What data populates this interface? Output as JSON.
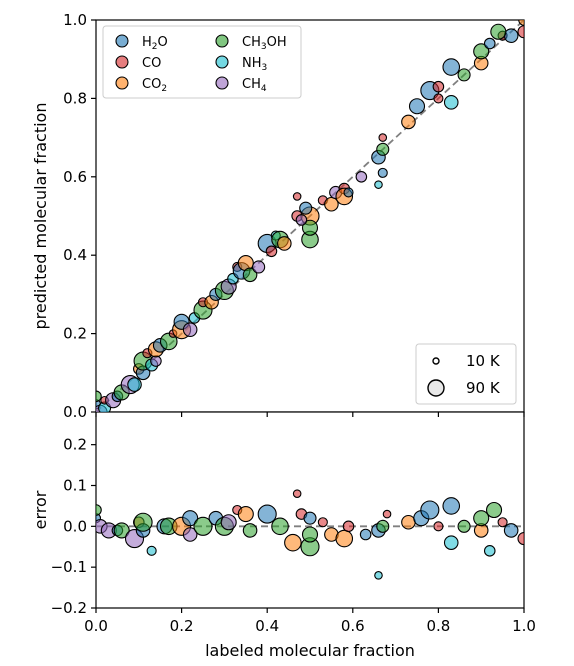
{
  "chart_data": {
    "type": "scatter",
    "x_axis": {
      "label": "labeled molecular fraction",
      "range": [
        0.0,
        1.0
      ],
      "ticks": [
        "0.0",
        "0.2",
        "0.4",
        "0.6",
        "0.8",
        "1.0"
      ]
    },
    "panels": [
      {
        "id": "top",
        "ylabel": "predicted molecular fraction",
        "ylim": [
          0.0,
          1.0
        ],
        "yticks": [
          "0.0",
          "0.2",
          "0.4",
          "0.6",
          "0.8",
          "1.0"
        ],
        "reference_line": {
          "style": "dashed",
          "color": "#808080",
          "from": [
            0,
            0
          ],
          "to": [
            1,
            1
          ]
        }
      },
      {
        "id": "bottom",
        "ylabel": "error",
        "ylim": [
          -0.2,
          0.28
        ],
        "yticks": [
          "−0.2",
          "−0.1",
          "0.0",
          "0.1",
          "0.2"
        ],
        "reference_line": {
          "style": "dashed",
          "color": "#808080",
          "from": [
            0,
            0
          ],
          "to": [
            1,
            0
          ]
        }
      }
    ],
    "legend": {
      "position": "upper-left",
      "series": [
        {
          "name": "H₂O",
          "color": "#1f77b4",
          "base": "H",
          "sub": "2",
          "tail": "O"
        },
        {
          "name": "CO",
          "color": "#d62728",
          "base": "CO",
          "sub": "",
          "tail": ""
        },
        {
          "name": "CO₂",
          "color": "#ff7f0e",
          "base": "CO",
          "sub": "2",
          "tail": ""
        },
        {
          "name": "CH₃OH",
          "color": "#2ca02c",
          "base": "CH",
          "sub": "3",
          "tail": "OH"
        },
        {
          "name": "NH₃",
          "color": "#17becf",
          "base": "NH",
          "sub": "3",
          "tail": ""
        },
        {
          "name": "CH₄",
          "color": "#9467bd",
          "base": "CH",
          "sub": "4",
          "tail": ""
        }
      ]
    },
    "size_legend": {
      "position": "lower-right",
      "entries": [
        {
          "label": "10 K",
          "temperature": 10
        },
        {
          "label": "90 K",
          "temperature": 90
        }
      ]
    },
    "points": [
      {
        "s": "H2O",
        "x": 0.0,
        "y": 0.02,
        "T": 30
      },
      {
        "s": "CH3OH",
        "x": 0.0,
        "y": 0.04,
        "T": 40
      },
      {
        "s": "CH4",
        "x": 0.01,
        "y": 0.0,
        "T": 60
      },
      {
        "s": "NH3",
        "x": 0.02,
        "y": 0.01,
        "T": 50
      },
      {
        "s": "CO",
        "x": 0.02,
        "y": 0.03,
        "T": 20
      },
      {
        "s": "CH4",
        "x": 0.04,
        "y": 0.03,
        "T": 70
      },
      {
        "s": "H2O",
        "x": 0.05,
        "y": 0.04,
        "T": 40
      },
      {
        "s": "CH3OH",
        "x": 0.06,
        "y": 0.05,
        "T": 70
      },
      {
        "s": "CH4",
        "x": 0.08,
        "y": 0.07,
        "T": 90
      },
      {
        "s": "NH3",
        "x": 0.09,
        "y": 0.07,
        "T": 60
      },
      {
        "s": "CO2",
        "x": 0.1,
        "y": 0.11,
        "T": 40
      },
      {
        "s": "H2O",
        "x": 0.11,
        "y": 0.1,
        "T": 60
      },
      {
        "s": "CH3OH",
        "x": 0.11,
        "y": 0.13,
        "T": 90
      },
      {
        "s": "CO",
        "x": 0.12,
        "y": 0.15,
        "T": 30
      },
      {
        "s": "NH3",
        "x": 0.13,
        "y": 0.12,
        "T": 50
      },
      {
        "s": "CH4",
        "x": 0.14,
        "y": 0.13,
        "T": 40
      },
      {
        "s": "CO2",
        "x": 0.14,
        "y": 0.16,
        "T": 70
      },
      {
        "s": "H2O",
        "x": 0.15,
        "y": 0.17,
        "T": 60
      },
      {
        "s": "CH3OH",
        "x": 0.17,
        "y": 0.18,
        "T": 80
      },
      {
        "s": "CO",
        "x": 0.18,
        "y": 0.2,
        "T": 20
      },
      {
        "s": "CO2",
        "x": 0.2,
        "y": 0.21,
        "T": 90
      },
      {
        "s": "H2O",
        "x": 0.2,
        "y": 0.23,
        "T": 70
      },
      {
        "s": "CH4",
        "x": 0.22,
        "y": 0.21,
        "T": 60
      },
      {
        "s": "NH3",
        "x": 0.23,
        "y": 0.24,
        "T": 40
      },
      {
        "s": "CH3OH",
        "x": 0.25,
        "y": 0.26,
        "T": 90
      },
      {
        "s": "CO",
        "x": 0.25,
        "y": 0.28,
        "T": 30
      },
      {
        "s": "CO2",
        "x": 0.27,
        "y": 0.28,
        "T": 60
      },
      {
        "s": "H2O",
        "x": 0.28,
        "y": 0.3,
        "T": 50
      },
      {
        "s": "CH3OH",
        "x": 0.3,
        "y": 0.31,
        "T": 90
      },
      {
        "s": "CH4",
        "x": 0.31,
        "y": 0.32,
        "T": 70
      },
      {
        "s": "NH3",
        "x": 0.32,
        "y": 0.34,
        "T": 40
      },
      {
        "s": "CO",
        "x": 0.33,
        "y": 0.37,
        "T": 30
      },
      {
        "s": "H2O",
        "x": 0.34,
        "y": 0.36,
        "T": 80
      },
      {
        "s": "CO2",
        "x": 0.35,
        "y": 0.38,
        "T": 70
      },
      {
        "s": "CH3OH",
        "x": 0.36,
        "y": 0.35,
        "T": 60
      },
      {
        "s": "CH4",
        "x": 0.38,
        "y": 0.37,
        "T": 50
      },
      {
        "s": "H2O",
        "x": 0.4,
        "y": 0.43,
        "T": 90
      },
      {
        "s": "CO",
        "x": 0.41,
        "y": 0.41,
        "T": 40
      },
      {
        "s": "NH3",
        "x": 0.42,
        "y": 0.45,
        "T": 30
      },
      {
        "s": "CH3OH",
        "x": 0.43,
        "y": 0.44,
        "T": 80
      },
      {
        "s": "CO2",
        "x": 0.44,
        "y": 0.43,
        "T": 60
      },
      {
        "s": "CO",
        "x": 0.47,
        "y": 0.55,
        "T": 20
      },
      {
        "s": "CO",
        "x": 0.47,
        "y": 0.5,
        "T": 40
      },
      {
        "s": "CO2",
        "x": 0.5,
        "y": 0.5,
        "T": 90
      },
      {
        "s": "CH3OH",
        "x": 0.5,
        "y": 0.44,
        "T": 80
      },
      {
        "s": "CH3OH",
        "x": 0.5,
        "y": 0.47,
        "T": 70
      },
      {
        "s": "H2O",
        "x": 0.49,
        "y": 0.52,
        "T": 50
      },
      {
        "s": "CH4",
        "x": 0.48,
        "y": 0.49,
        "T": 40
      },
      {
        "s": "CO",
        "x": 0.53,
        "y": 0.54,
        "T": 30
      },
      {
        "s": "CO2",
        "x": 0.55,
        "y": 0.53,
        "T": 60
      },
      {
        "s": "CH4",
        "x": 0.56,
        "y": 0.56,
        "T": 50
      },
      {
        "s": "CO",
        "x": 0.58,
        "y": 0.57,
        "T": 40
      },
      {
        "s": "CO2",
        "x": 0.58,
        "y": 0.55,
        "T": 80
      },
      {
        "s": "H2O",
        "x": 0.59,
        "y": 0.56,
        "T": 30
      },
      {
        "s": "CH4",
        "x": 0.62,
        "y": 0.6,
        "T": 40
      },
      {
        "s": "H2O",
        "x": 0.66,
        "y": 0.65,
        "T": 60
      },
      {
        "s": "H2O",
        "x": 0.67,
        "y": 0.61,
        "T": 30
      },
      {
        "s": "CO",
        "x": 0.67,
        "y": 0.7,
        "T": 20
      },
      {
        "s": "CH3OH",
        "x": 0.67,
        "y": 0.67,
        "T": 50
      },
      {
        "s": "NH3",
        "x": 0.66,
        "y": 0.58,
        "T": 20
      },
      {
        "s": "CO2",
        "x": 0.73,
        "y": 0.74,
        "T": 60
      },
      {
        "s": "H2O",
        "x": 0.75,
        "y": 0.78,
        "T": 70
      },
      {
        "s": "H2O",
        "x": 0.78,
        "y": 0.82,
        "T": 90
      },
      {
        "s": "CO",
        "x": 0.8,
        "y": 0.8,
        "T": 30
      },
      {
        "s": "NH3",
        "x": 0.83,
        "y": 0.79,
        "T": 60
      },
      {
        "s": "CO",
        "x": 0.8,
        "y": 0.83,
        "T": 40
      },
      {
        "s": "H2O",
        "x": 0.83,
        "y": 0.88,
        "T": 80
      },
      {
        "s": "CH3OH",
        "x": 0.86,
        "y": 0.86,
        "T": 50
      },
      {
        "s": "CO2",
        "x": 0.9,
        "y": 0.89,
        "T": 60
      },
      {
        "s": "CH3OH",
        "x": 0.9,
        "y": 0.92,
        "T": 70
      },
      {
        "s": "H2O",
        "x": 0.92,
        "y": 0.94,
        "T": 40
      },
      {
        "s": "CO",
        "x": 0.95,
        "y": 0.96,
        "T": 30
      },
      {
        "s": "H2O",
        "x": 0.97,
        "y": 0.96,
        "T": 60
      },
      {
        "s": "CO",
        "x": 1.0,
        "y": 0.97,
        "T": 50
      },
      {
        "s": "CO2",
        "x": 1.0,
        "y": 1.0,
        "T": 40
      },
      {
        "s": "CH3OH",
        "x": 0.94,
        "y": 0.97,
        "T": 70
      }
    ],
    "error_points": [
      {
        "s": "H2O",
        "x": 0.0,
        "y": 0.02,
        "T": 30
      },
      {
        "s": "CH3OH",
        "x": 0.0,
        "y": 0.04,
        "T": 40
      },
      {
        "s": "CH4",
        "x": 0.01,
        "y": 0.0,
        "T": 60
      },
      {
        "s": "CH4",
        "x": 0.03,
        "y": -0.01,
        "T": 70
      },
      {
        "s": "H2O",
        "x": 0.05,
        "y": -0.01,
        "T": 40
      },
      {
        "s": "CH3OH",
        "x": 0.06,
        "y": -0.01,
        "T": 70
      },
      {
        "s": "CH4",
        "x": 0.09,
        "y": -0.03,
        "T": 90
      },
      {
        "s": "CO2",
        "x": 0.1,
        "y": 0.01,
        "T": 40
      },
      {
        "s": "H2O",
        "x": 0.11,
        "y": -0.01,
        "T": 60
      },
      {
        "s": "CH3OH",
        "x": 0.11,
        "y": 0.01,
        "T": 90
      },
      {
        "s": "NH3",
        "x": 0.13,
        "y": -0.06,
        "T": 30
      },
      {
        "s": "H2O",
        "x": 0.16,
        "y": 0.0,
        "T": 70
      },
      {
        "s": "CH3OH",
        "x": 0.17,
        "y": 0.0,
        "T": 80
      },
      {
        "s": "CO2",
        "x": 0.2,
        "y": 0.0,
        "T": 90
      },
      {
        "s": "H2O",
        "x": 0.22,
        "y": 0.02,
        "T": 70
      },
      {
        "s": "CH4",
        "x": 0.22,
        "y": -0.02,
        "T": 60
      },
      {
        "s": "CH3OH",
        "x": 0.25,
        "y": 0.0,
        "T": 90
      },
      {
        "s": "H2O",
        "x": 0.28,
        "y": 0.02,
        "T": 60
      },
      {
        "s": "CH3OH",
        "x": 0.3,
        "y": 0.0,
        "T": 90
      },
      {
        "s": "CH4",
        "x": 0.31,
        "y": 0.01,
        "T": 70
      },
      {
        "s": "CO",
        "x": 0.33,
        "y": 0.04,
        "T": 30
      },
      {
        "s": "CO2",
        "x": 0.35,
        "y": 0.03,
        "T": 70
      },
      {
        "s": "CH3OH",
        "x": 0.36,
        "y": -0.01,
        "T": 60
      },
      {
        "s": "H2O",
        "x": 0.4,
        "y": 0.03,
        "T": 90
      },
      {
        "s": "CH3OH",
        "x": 0.43,
        "y": 0.0,
        "T": 80
      },
      {
        "s": "CO",
        "x": 0.47,
        "y": 0.08,
        "T": 20
      },
      {
        "s": "CO",
        "x": 0.48,
        "y": 0.03,
        "T": 40
      },
      {
        "s": "CO2",
        "x": 0.46,
        "y": -0.04,
        "T": 80
      },
      {
        "s": "CH3OH",
        "x": 0.5,
        "y": -0.05,
        "T": 90
      },
      {
        "s": "CH3OH",
        "x": 0.5,
        "y": -0.02,
        "T": 70
      },
      {
        "s": "H2O",
        "x": 0.5,
        "y": 0.02,
        "T": 50
      },
      {
        "s": "CO",
        "x": 0.53,
        "y": 0.01,
        "T": 30
      },
      {
        "s": "CO2",
        "x": 0.55,
        "y": -0.02,
        "T": 60
      },
      {
        "s": "CO2",
        "x": 0.58,
        "y": -0.03,
        "T": 80
      },
      {
        "s": "CO",
        "x": 0.59,
        "y": 0.0,
        "T": 40
      },
      {
        "s": "H2O",
        "x": 0.63,
        "y": -0.02,
        "T": 40
      },
      {
        "s": "H2O",
        "x": 0.66,
        "y": -0.01,
        "T": 60
      },
      {
        "s": "NH3",
        "x": 0.66,
        "y": -0.12,
        "T": 20
      },
      {
        "s": "CO",
        "x": 0.68,
        "y": 0.03,
        "T": 20
      },
      {
        "s": "CH3OH",
        "x": 0.67,
        "y": 0.0,
        "T": 50
      },
      {
        "s": "CO2",
        "x": 0.73,
        "y": 0.01,
        "T": 60
      },
      {
        "s": "H2O",
        "x": 0.76,
        "y": 0.02,
        "T": 70
      },
      {
        "s": "H2O",
        "x": 0.78,
        "y": 0.04,
        "T": 90
      },
      {
        "s": "CO",
        "x": 0.8,
        "y": 0.0,
        "T": 30
      },
      {
        "s": "NH3",
        "x": 0.83,
        "y": -0.04,
        "T": 60
      },
      {
        "s": "H2O",
        "x": 0.83,
        "y": 0.05,
        "T": 80
      },
      {
        "s": "CH3OH",
        "x": 0.86,
        "y": 0.0,
        "T": 50
      },
      {
        "s": "CO2",
        "x": 0.9,
        "y": -0.01,
        "T": 60
      },
      {
        "s": "CH3OH",
        "x": 0.9,
        "y": 0.02,
        "T": 70
      },
      {
        "s": "NH3",
        "x": 0.92,
        "y": -0.06,
        "T": 40
      },
      {
        "s": "CO",
        "x": 0.95,
        "y": 0.01,
        "T": 30
      },
      {
        "s": "H2O",
        "x": 0.97,
        "y": -0.01,
        "T": 60
      },
      {
        "s": "CO",
        "x": 1.0,
        "y": -0.03,
        "T": 50
      },
      {
        "s": "CH3OH",
        "x": 0.93,
        "y": 0.04,
        "T": 70
      }
    ]
  }
}
